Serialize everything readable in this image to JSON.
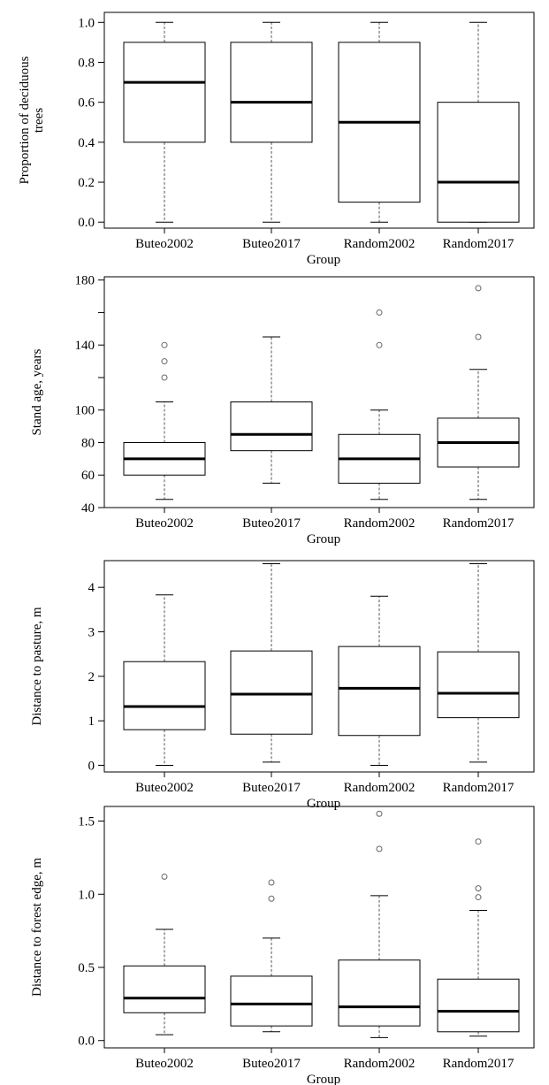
{
  "chart_data": [
    {
      "type": "box",
      "ylabel": "Proportion of deciduous trees",
      "ylabel_lines": [
        "Proportion of deciduous",
        "trees"
      ],
      "xlabel": "Group",
      "categories": [
        "Buteo2002",
        "Buteo2017",
        "Random2002",
        "Random2017"
      ],
      "ylim": [
        -0.03,
        1.05
      ],
      "yticks": [
        0.0,
        0.2,
        0.4,
        0.6,
        0.8,
        1.0
      ],
      "ytick_labels": [
        "0.0",
        "0.2",
        "0.4",
        "0.6",
        "0.8",
        "1.0"
      ],
      "boxes": [
        {
          "min": 0.0,
          "q1": 0.4,
          "median": 0.7,
          "q3": 0.9,
          "max": 1.0,
          "outliers": []
        },
        {
          "min": 0.0,
          "q1": 0.4,
          "median": 0.6,
          "q3": 0.9,
          "max": 1.0,
          "outliers": []
        },
        {
          "min": 0.0,
          "q1": 0.1,
          "median": 0.5,
          "q3": 0.9,
          "max": 1.0,
          "outliers": []
        },
        {
          "min": 0.0,
          "q1": 0.0,
          "median": 0.2,
          "q3": 0.6,
          "max": 1.0,
          "outliers": []
        }
      ]
    },
    {
      "type": "box",
      "ylabel": "Stand age, years",
      "ylabel_lines": [
        "Stand age, years"
      ],
      "xlabel": "Group",
      "categories": [
        "Buteo2002",
        "Buteo2017",
        "Random2002",
        "Random2017"
      ],
      "ylim": [
        40,
        182
      ],
      "yticks": [
        40,
        60,
        80,
        100,
        120,
        140,
        160,
        180
      ],
      "ytick_labels": [
        "40",
        "60",
        "80",
        "100",
        "",
        "140",
        "",
        "180"
      ],
      "boxes": [
        {
          "min": 45,
          "q1": 60,
          "median": 70,
          "q3": 80,
          "max": 105,
          "outliers": [
            120,
            130,
            140
          ]
        },
        {
          "min": 55,
          "q1": 75,
          "median": 85,
          "q3": 105,
          "max": 145,
          "outliers": []
        },
        {
          "min": 45,
          "q1": 55,
          "median": 70,
          "q3": 85,
          "max": 100,
          "outliers": [
            140,
            160
          ]
        },
        {
          "min": 45,
          "q1": 65,
          "median": 80,
          "q3": 95,
          "max": 125,
          "outliers": [
            145,
            175
          ]
        }
      ]
    },
    {
      "type": "box",
      "ylabel": "Distance to pasture, m",
      "ylabel_lines": [
        "Distance to pasture, m"
      ],
      "xlabel": "Group",
      "categories": [
        "Buteo2002",
        "Buteo2017",
        "Random2002",
        "Random2017"
      ],
      "ylim": [
        -0.15,
        4.6
      ],
      "yticks": [
        0,
        1,
        2,
        3,
        4
      ],
      "ytick_labels": [
        "0",
        "1",
        "2",
        "3",
        "4"
      ],
      "boxes": [
        {
          "min": 0.0,
          "q1": 0.8,
          "median": 1.32,
          "q3": 2.33,
          "max": 3.83,
          "outliers": []
        },
        {
          "min": 0.07,
          "q1": 0.7,
          "median": 1.6,
          "q3": 2.57,
          "max": 4.53,
          "outliers": []
        },
        {
          "min": 0.0,
          "q1": 0.67,
          "median": 1.73,
          "q3": 2.67,
          "max": 3.8,
          "outliers": []
        },
        {
          "min": 0.07,
          "q1": 1.07,
          "median": 1.62,
          "q3": 2.55,
          "max": 4.53,
          "outliers": []
        }
      ]
    },
    {
      "type": "box",
      "ylabel": "Distance to forest edge, m",
      "ylabel_lines": [
        "Distance to forest edge, m"
      ],
      "xlabel": "Group",
      "categories": [
        "Buteo2002",
        "Buteo2017",
        "Random2002",
        "Random2017"
      ],
      "ylim": [
        -0.05,
        1.6
      ],
      "yticks": [
        0.0,
        0.5,
        1.0,
        1.5
      ],
      "ytick_labels": [
        "0.0",
        "0.5",
        "1.0",
        "1.5"
      ],
      "boxes": [
        {
          "min": 0.04,
          "q1": 0.19,
          "median": 0.29,
          "q3": 0.51,
          "max": 0.76,
          "outliers": [
            1.12
          ]
        },
        {
          "min": 0.06,
          "q1": 0.1,
          "median": 0.25,
          "q3": 0.44,
          "max": 0.7,
          "outliers": [
            0.97,
            1.08
          ]
        },
        {
          "min": 0.02,
          "q1": 0.1,
          "median": 0.23,
          "q3": 0.55,
          "max": 0.99,
          "outliers": [
            1.31,
            1.55
          ]
        },
        {
          "min": 0.03,
          "q1": 0.06,
          "median": 0.2,
          "q3": 0.42,
          "max": 0.89,
          "outliers": [
            0.98,
            1.04,
            1.36
          ]
        }
      ]
    }
  ]
}
